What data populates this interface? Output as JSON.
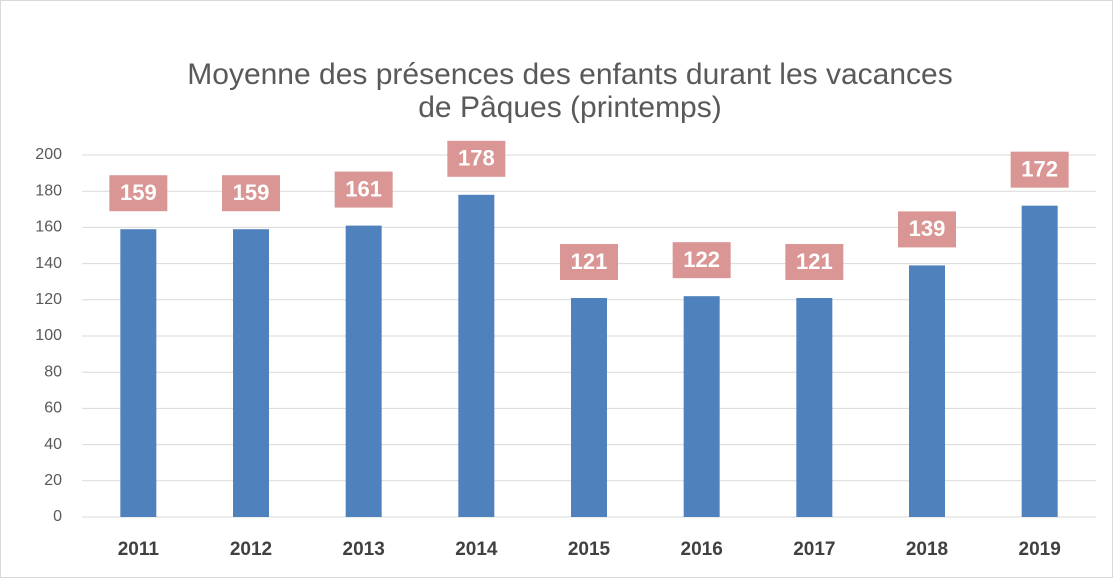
{
  "chart_data": {
    "type": "bar",
    "title": [
      "Moyenne des présences des enfants durant les vacances",
      "de  Pâques (printemps)"
    ],
    "categories": [
      "2011",
      "2012",
      "2013",
      "2014",
      "2015",
      "2016",
      "2017",
      "2018",
      "2019"
    ],
    "values": [
      159,
      159,
      161,
      178,
      121,
      122,
      121,
      139,
      172
    ],
    "color": "#4f81bd",
    "label_color": "#da9694",
    "ylim": [
      0,
      200
    ],
    "yticks": [
      0,
      20,
      40,
      60,
      80,
      100,
      120,
      140,
      160,
      180,
      200
    ],
    "grid": true
  }
}
